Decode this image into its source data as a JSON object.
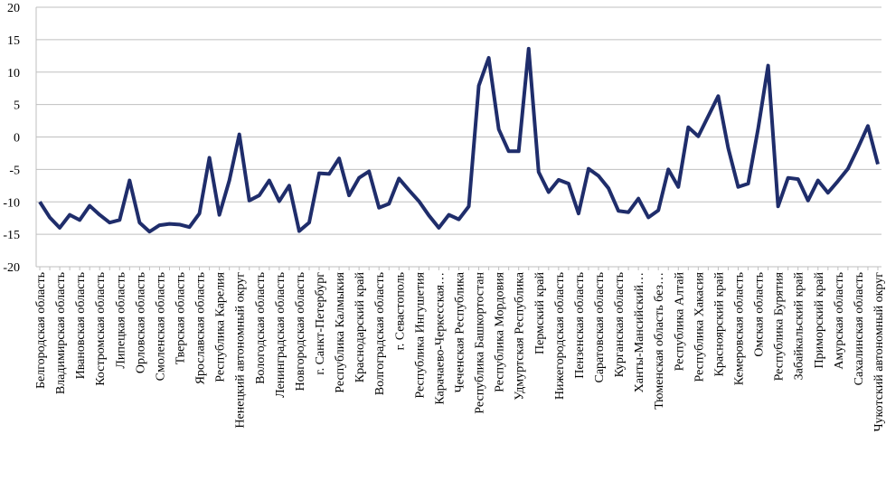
{
  "chart_data": {
    "type": "line",
    "categories": [
      "Белгородская область",
      null,
      "Владимирская область",
      null,
      "Ивановская область",
      null,
      "Костромская область",
      null,
      "Липецкая область",
      null,
      "Орловская область",
      null,
      "Смоленская область",
      null,
      "Тверская область",
      null,
      "Ярославская область",
      null,
      "Республика Карелия",
      null,
      "Ненецкий автономный округ",
      null,
      "Вологодская область",
      null,
      "Ленинградская область",
      null,
      "Новгородская область",
      null,
      "г. Санкт-Петербург",
      null,
      "Республика Калмыкия",
      null,
      "Краснодарский край",
      null,
      "Волгоградская область",
      null,
      "г. Севастополь",
      null,
      "Республика Ингушетия",
      null,
      "Карачаево-Черкесская…",
      null,
      "Чеченская Республика",
      null,
      "Республика Башкортостан",
      null,
      "Республика Мордовия",
      null,
      "Удмуртская Республика",
      null,
      "Пермский край",
      null,
      "Нижегородская область",
      null,
      "Пензенская область",
      null,
      "Саратовская область",
      null,
      "Курганская область",
      null,
      "Ханты-Мансийский…",
      null,
      "Тюменская область без…",
      null,
      "Республика Алтай",
      null,
      "Республика Хакасия",
      null,
      "Красноярский край",
      null,
      "Кемеровская область",
      null,
      "Омская область",
      null,
      "Республика Бурятия",
      null,
      "Забайкальский край",
      null,
      "Приморский край",
      null,
      "Амурская область",
      null,
      "Сахалинская область",
      null,
      "Чукотский автономный округ"
    ],
    "values": [
      -10,
      -12.4,
      -14,
      -12,
      -12.8,
      -10.6,
      -12,
      -13.2,
      -12.8,
      -6.7,
      -13.2,
      -14.6,
      -13.6,
      -13.4,
      -13.5,
      -13.9,
      -11.8,
      -3.2,
      -12,
      -6.7,
      0.4,
      -9.8,
      -9,
      -6.7,
      -9.9,
      -7.5,
      -14.5,
      -13.2,
      -5.6,
      -5.7,
      -3.3,
      -9,
      -6.3,
      -5.3,
      -10.9,
      -10.3,
      -6.4,
      -8.2,
      -9.9,
      -12.1,
      -14,
      -12,
      -12.7,
      -10.7,
      7.9,
      12.2,
      1.2,
      -2.2,
      -2.2,
      13.6,
      -5.4,
      -8.5,
      -6.6,
      -7.2,
      -11.8,
      -4.9,
      -6,
      -7.9,
      -11.4,
      -11.6,
      -9.5,
      -12.4,
      -11.3,
      -5,
      -7.7,
      1.5,
      0.1,
      3.2,
      6.3,
      -1.7,
      -7.7,
      -7.2,
      1.3,
      11,
      -10.7,
      -6.3,
      -6.5,
      -9.8,
      -6.7,
      -8.6,
      -6.8,
      -4.9,
      -1.7,
      1.7,
      -4.2
    ],
    "color": "#1f2d6b",
    "ylim": [
      -20,
      20
    ],
    "yticks": [
      -20,
      -15,
      -10,
      -5,
      0,
      5,
      10,
      15,
      20
    ],
    "grid": true
  }
}
